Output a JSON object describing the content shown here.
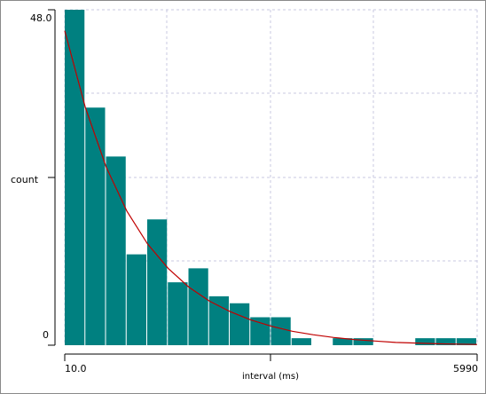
{
  "chart_data": {
    "type": "bar",
    "xlabel": "interval (ms)",
    "ylabel": "count",
    "x_tick_labels": [
      "10.0",
      "5990"
    ],
    "y_tick_labels": [
      "48.0",
      "0"
    ],
    "xlim": [
      10,
      5990
    ],
    "ylim": [
      0,
      48
    ],
    "grid": true,
    "bar_color": "#008080",
    "curve_color": "#c00000",
    "bins": {
      "start": 10,
      "width": 299,
      "values": [
        48,
        34,
        27,
        13,
        18,
        9,
        11,
        7,
        6,
        4,
        4,
        1,
        0,
        1,
        1,
        0,
        0,
        1,
        1,
        1
      ]
    },
    "fit_curve": {
      "x": [
        10,
        310,
        610,
        910,
        1210,
        1510,
        1810,
        2110,
        2410,
        2710,
        3010,
        3310,
        3610,
        3910,
        4210,
        4510,
        4810,
        5110,
        5410,
        5710,
        5990
      ],
      "y": [
        45,
        34,
        25.5,
        19.2,
        14.5,
        11,
        8.3,
        6.3,
        4.8,
        3.6,
        2.7,
        2,
        1.5,
        1.1,
        0.8,
        0.6,
        0.4,
        0.3,
        0.2,
        0.15,
        0.1
      ]
    }
  }
}
